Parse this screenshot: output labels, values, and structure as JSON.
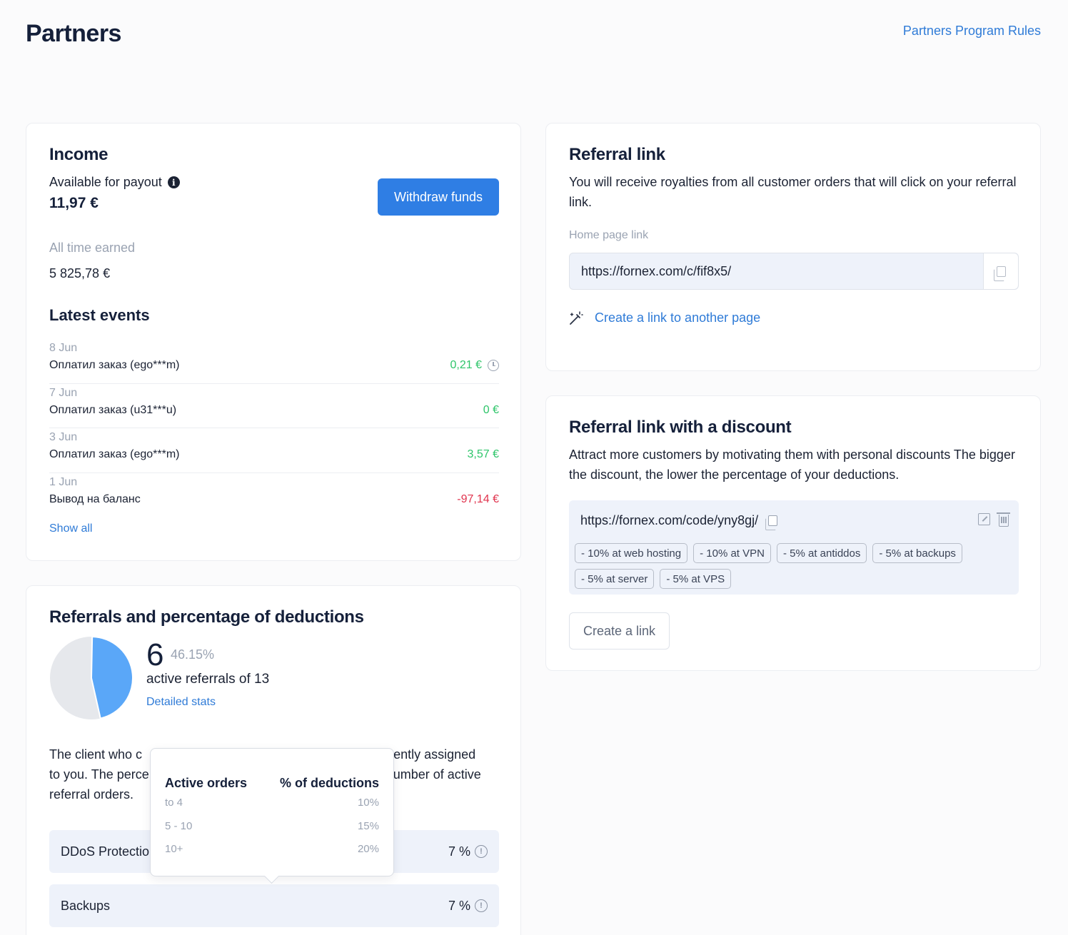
{
  "header": {
    "title": "Partners",
    "rules_link": "Partners Program Rules"
  },
  "income": {
    "title": "Income",
    "available_label": "Available for payout",
    "available_value": "11,97 €",
    "withdraw_label": "Withdraw funds",
    "all_time_label": "All time earned",
    "all_time_value": "5 825,78 €",
    "events_title": "Latest events",
    "events": [
      {
        "date": "8 Jun",
        "desc": "Оплатил заказ (ego***m)",
        "amount": "0,21 €",
        "tone": "green",
        "pending": true
      },
      {
        "date": "7 Jun",
        "desc": "Оплатил заказ (u31***u)",
        "amount": "0 €",
        "tone": "green",
        "pending": false
      },
      {
        "date": "3 Jun",
        "desc": "Оплатил заказ (ego***m)",
        "amount": "3,57 €",
        "tone": "green",
        "pending": false
      },
      {
        "date": "1 Jun",
        "desc": "Вывод на баланс",
        "amount": "-97,14 €",
        "tone": "red",
        "pending": false
      }
    ],
    "show_all": "Show all"
  },
  "referrals": {
    "title": "Referrals and percentage of deductions",
    "active_count": "6",
    "active_percent": "46.15%",
    "active_fraction": 0.4615,
    "active_label": "active referrals of 13",
    "detailed_link": "Detailed stats",
    "description": "The client who came by your referral link is permanently assigned to you. The percentage of deductions depends on the number of active referral orders.",
    "description_visible_before": "The client who c",
    "description_visible_after": "nently assigned",
    "description_line2_before": "to you. The perce",
    "description_line2_after": "umber of active",
    "description_line3": "referral orders.",
    "services": [
      {
        "name": "DDoS Protection",
        "percent": "7 %"
      },
      {
        "name": "Backups",
        "percent": "7 %"
      }
    ],
    "pie_colors": {
      "active": "#5aa7f8",
      "inactive": "#e6e8ec"
    }
  },
  "tooltip": {
    "col1_header": "Active orders",
    "col2_header": "% of deductions",
    "rows": [
      {
        "orders": "to 4",
        "percent": "10%"
      },
      {
        "orders": "5 - 10",
        "percent": "15%"
      },
      {
        "orders": "10+",
        "percent": "20%"
      }
    ]
  },
  "referral_link": {
    "title": "Referral link",
    "description": "You will receive royalties from all customer orders that will click on your referral link.",
    "home_label": "Home page link",
    "home_url": "https://fornex.com/c/fif8x5/",
    "create_other": "Create a link to another page"
  },
  "discount": {
    "title": "Referral link with a discount",
    "description": "Attract more customers by motivating them with personal discounts The bigger the discount, the lower the percentage of your deductions.",
    "url": "https://fornex.com/code/yny8gj/",
    "chips": [
      "- 10% at web hosting",
      "- 10% at VPN",
      "- 5% at antiddos",
      "- 5% at backups",
      "- 5% at server",
      "- 5% at VPS"
    ],
    "create_label": "Create a link"
  }
}
